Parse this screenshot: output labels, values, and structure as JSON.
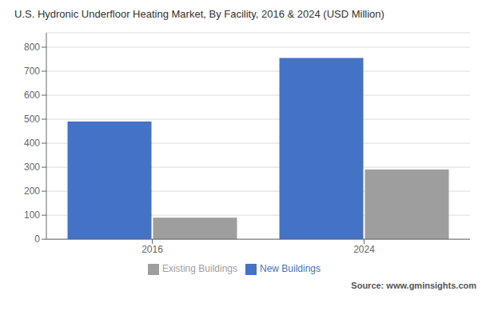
{
  "chart_data": {
    "type": "bar",
    "title": "U.S. Hydronic Underfloor Heating Market, By Facility, 2016 & 2024 (USD Million)",
    "categories": [
      "2016",
      "2024"
    ],
    "series": [
      {
        "name": "New Buildings",
        "color": "#4472c4",
        "values": [
          490,
          755
        ]
      },
      {
        "name": "Existing Buildings",
        "color": "#9e9e9e",
        "values": [
          90,
          290
        ]
      }
    ],
    "ylim": [
      0,
      860
    ],
    "yticks": [
      0,
      100,
      200,
      300,
      400,
      500,
      600,
      700,
      800
    ],
    "grid": true,
    "legend": "bottom",
    "annotations": [
      "Source: www.gminsights.com"
    ]
  }
}
